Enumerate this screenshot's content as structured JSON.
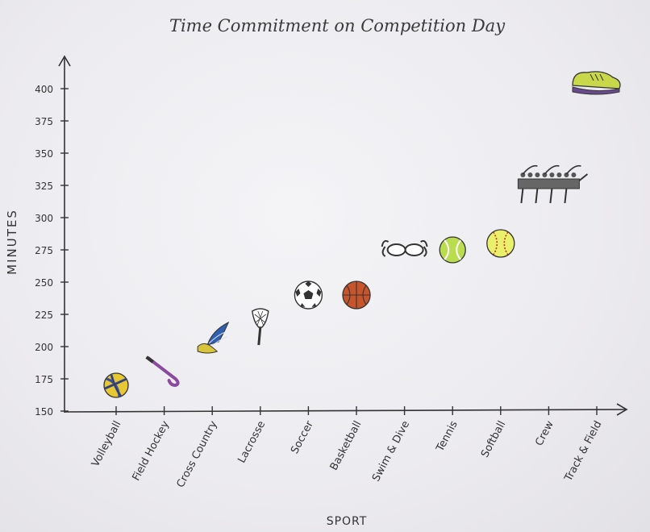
{
  "chart_data": {
    "type": "scatter",
    "title": "Time Commitment on Competition Day",
    "xlabel": "SPORT",
    "ylabel": "MINUTES",
    "categories": [
      "Volleyball",
      "Field Hockey",
      "Cross Country",
      "Lacrosse",
      "Soccer",
      "Basketball",
      "Swim & Dive",
      "Tennis",
      "Softball",
      "Crew",
      "Track & Field"
    ],
    "values": [
      170,
      180,
      205,
      215,
      240,
      240,
      275,
      275,
      280,
      325,
      405
    ],
    "ylim": [
      150,
      420
    ],
    "yticks": [
      150,
      175,
      200,
      225,
      250,
      275,
      300,
      325,
      350,
      375,
      400
    ],
    "ytick_labels": [
      "150",
      "175",
      "200",
      "225",
      "250",
      "275",
      "300",
      "325",
      "350",
      "375",
      "400"
    ],
    "markers": [
      "volleyball-icon",
      "field-hockey-stick-icon",
      "winged-shoe-icon",
      "lacrosse-stick-icon",
      "soccer-ball-icon",
      "basketball-icon",
      "swim-goggles-icon",
      "tennis-ball-icon",
      "softball-icon",
      "crew-boat-icon",
      "track-shoe-icon"
    ],
    "grid": false,
    "colors": {
      "ink": "#333333",
      "volleyball": "#e8c832",
      "volleyball_blue": "#3a4f9e",
      "stick": "#8a4a9e",
      "wing": "#2f5fb0",
      "shoe_yellow": "#d9c33a",
      "basketball": "#c8542c",
      "tennis": "#b9dd4f",
      "softball": "#eaf06a",
      "track_shoe": "#c8d84a",
      "track_sole": "#6a4a8e"
    }
  }
}
